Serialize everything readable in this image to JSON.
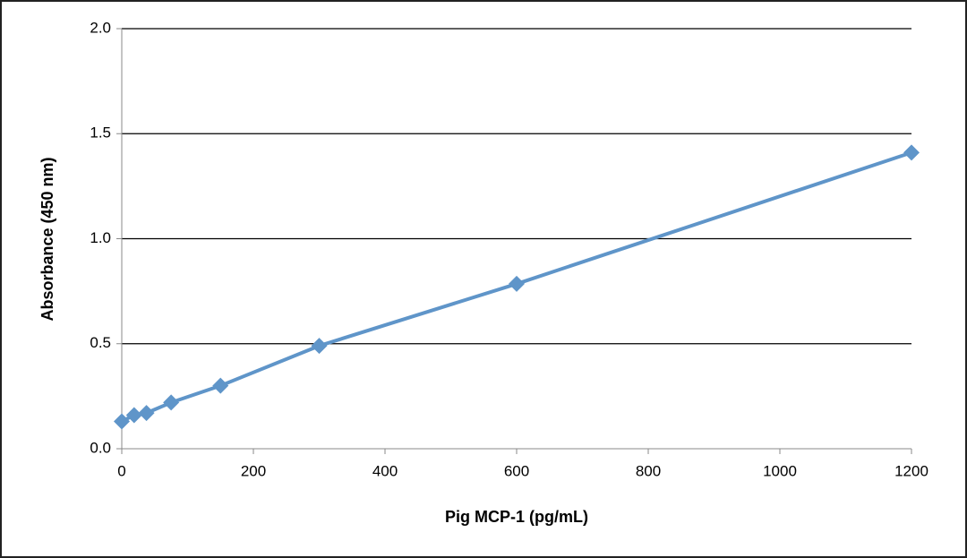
{
  "chart_data": {
    "type": "line",
    "xlabel": "Pig MCP-1 (pg/mL)",
    "ylabel": "Absorbance (450 nm)",
    "x": [
      0,
      18.75,
      37.5,
      75,
      150,
      300,
      600,
      1200
    ],
    "series": [
      {
        "color": "#5f95c9",
        "values": [
          0.13,
          0.16,
          0.17,
          0.22,
          0.3,
          0.49,
          0.785,
          1.41
        ]
      }
    ],
    "xlim": [
      0,
      1200
    ],
    "xticks": [
      0,
      200,
      400,
      600,
      800,
      1000,
      1200
    ],
    "ylim": [
      0,
      2.0
    ],
    "yticks": [
      {
        "value": 0,
        "label": "0.0"
      },
      {
        "value": 0.5,
        "label": "0.5"
      },
      {
        "value": 1.0,
        "label": "1.0"
      },
      {
        "value": 1.5,
        "label": "1.5"
      },
      {
        "value": 2.0,
        "label": "2.0"
      }
    ],
    "grid": true,
    "marker": "diamond"
  }
}
